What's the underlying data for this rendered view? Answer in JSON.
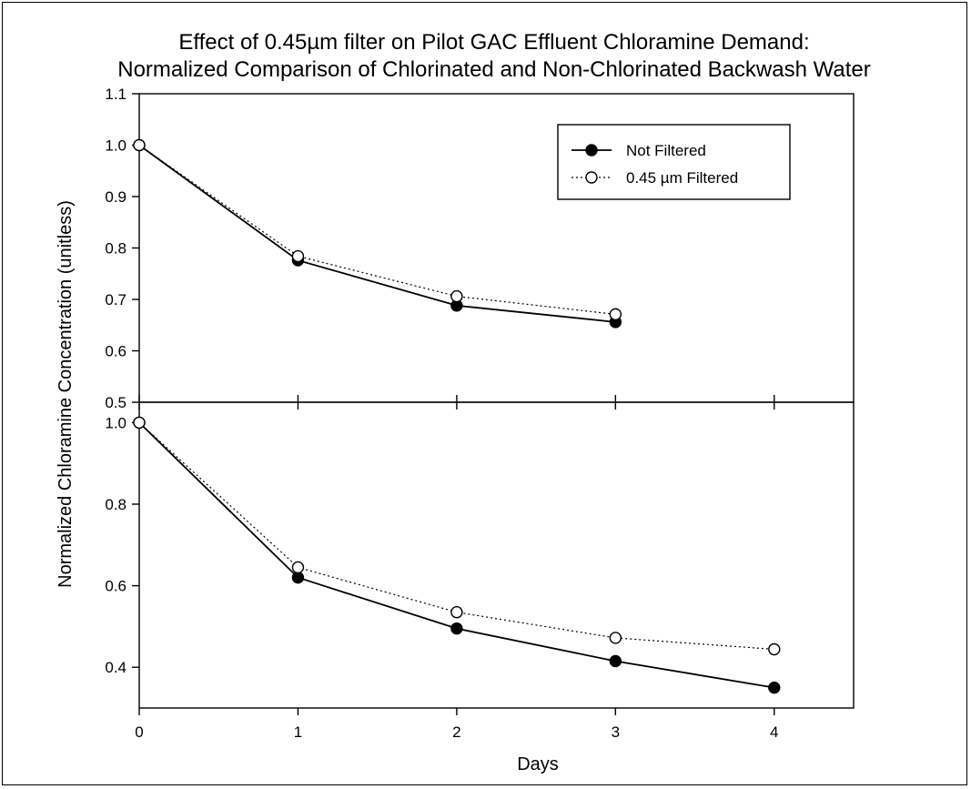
{
  "chart_data": {
    "type": "line",
    "title": "Effect of 0.45µm filter on Pilot GAC Effluent Chloramine Demand:",
    "subtitle": "Normalized Comparison of Chlorinated and Non-Chlorinated Backwash Water",
    "ylabel": "Normalized Chloramine Concentration (unitless)",
    "xlabel": "Days",
    "xlim": [
      0,
      4.5
    ],
    "x_ticks": [
      "0",
      "1",
      "2",
      "3",
      "4"
    ],
    "legend": {
      "placement": "top-right of upper panel",
      "entries": [
        "Not Filtered",
        "0.45 µm Filtered"
      ]
    },
    "panels": [
      {
        "name": "upper",
        "ylim": [
          0.5,
          1.1
        ],
        "y_ticks": [
          "0.5",
          "0.6",
          "0.7",
          "0.8",
          "0.9",
          "1.0",
          "1.1"
        ],
        "series": [
          {
            "name": "Not Filtered",
            "marker": "filled-circle",
            "line": "solid",
            "x": [
              0,
              1,
              2,
              3
            ],
            "y": [
              1.0,
              0.776,
              0.688,
              0.656
            ]
          },
          {
            "name": "0.45 µm Filtered",
            "marker": "open-circle",
            "line": "dotted",
            "x": [
              0,
              1,
              2,
              3
            ],
            "y": [
              1.0,
              0.784,
              0.706,
              0.671
            ]
          }
        ]
      },
      {
        "name": "lower",
        "ylim": [
          0.3,
          1.05
        ],
        "y_ticks": [
          "0.4",
          "0.6",
          "0.8",
          "1.0"
        ],
        "series": [
          {
            "name": "Not Filtered",
            "marker": "filled-circle",
            "line": "solid",
            "x": [
              0,
              1,
              2,
              3,
              4
            ],
            "y": [
              1.0,
              0.62,
              0.495,
              0.415,
              0.35
            ]
          },
          {
            "name": "0.45 µm Filtered",
            "marker": "open-circle",
            "line": "dotted",
            "x": [
              0,
              1,
              2,
              3,
              4
            ],
            "y": [
              1.0,
              0.645,
              0.535,
              0.472,
              0.444
            ]
          }
        ]
      }
    ]
  }
}
